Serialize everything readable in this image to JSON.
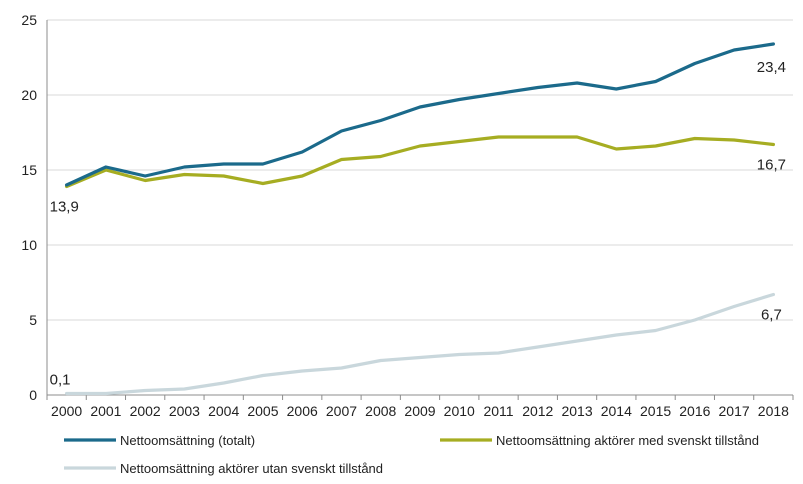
{
  "chart_data": {
    "type": "line",
    "x": [
      2000,
      2001,
      2002,
      2003,
      2004,
      2005,
      2006,
      2007,
      2008,
      2009,
      2010,
      2011,
      2012,
      2013,
      2014,
      2015,
      2016,
      2017,
      2018
    ],
    "ylim": [
      0,
      25
    ],
    "yticks": [
      0,
      5,
      10,
      15,
      20,
      25
    ],
    "grid": "horizontal",
    "legend_position": "bottom",
    "series": [
      {
        "name": "Nettoomsättning (totalt)",
        "color": "#1b6a8b",
        "values": [
          14.0,
          15.2,
          14.6,
          15.2,
          15.4,
          15.4,
          16.2,
          17.6,
          18.3,
          19.2,
          19.7,
          20.1,
          20.5,
          20.8,
          20.4,
          20.9,
          22.1,
          23.0,
          23.4
        ]
      },
      {
        "name": "Nettoomsättning aktörer med svenskt tillstånd",
        "color": "#a6ad22",
        "values": [
          13.9,
          15.0,
          14.3,
          14.7,
          14.6,
          14.1,
          14.6,
          15.7,
          15.9,
          16.6,
          16.9,
          17.2,
          17.2,
          17.2,
          16.4,
          16.6,
          17.1,
          17.0,
          16.7
        ]
      },
      {
        "name": "Nettoomsättning aktörer utan svenskt tillstånd",
        "color": "#c9d7dc",
        "values": [
          0.1,
          0.1,
          0.3,
          0.4,
          0.8,
          1.3,
          1.6,
          1.8,
          2.3,
          2.5,
          2.7,
          2.8,
          3.2,
          3.6,
          4.0,
          4.3,
          5.0,
          5.9,
          6.7
        ]
      }
    ],
    "annotations": [
      {
        "text": "23,4",
        "x": 2018,
        "y": 23.4,
        "series": 0
      },
      {
        "text": "16,7",
        "x": 2018,
        "y": 16.7,
        "series": 1
      },
      {
        "text": "13,9",
        "x": 2000,
        "y": 13.9,
        "series": 1
      },
      {
        "text": "6,7",
        "x": 2018,
        "y": 6.7,
        "series": 2
      },
      {
        "text": "0,1",
        "x": 2000,
        "y": 0.1,
        "series": 2
      }
    ]
  }
}
